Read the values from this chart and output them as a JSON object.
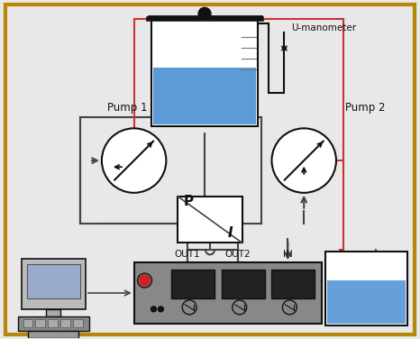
{
  "bg_color": "#e8e8e8",
  "border_color": "#b8860b",
  "water_color": "#4a8fd4",
  "pump_fill": "#ffffff",
  "gray": "#444444",
  "red": "#cc3333",
  "dark": "#111111",
  "pi_fill": "#ffffff",
  "ctrl_fill": "#888888",
  "ctrl_dark": "#333333",
  "res_fill": "#ffffff",
  "comp_fill": "#cccccc",
  "manometer_label": "U-manometer",
  "pump1_label": "Pump 1",
  "pump2_label": "Pump 2",
  "out1_label": "OUT1",
  "out2_label": "OUT2",
  "in_label": "IN"
}
